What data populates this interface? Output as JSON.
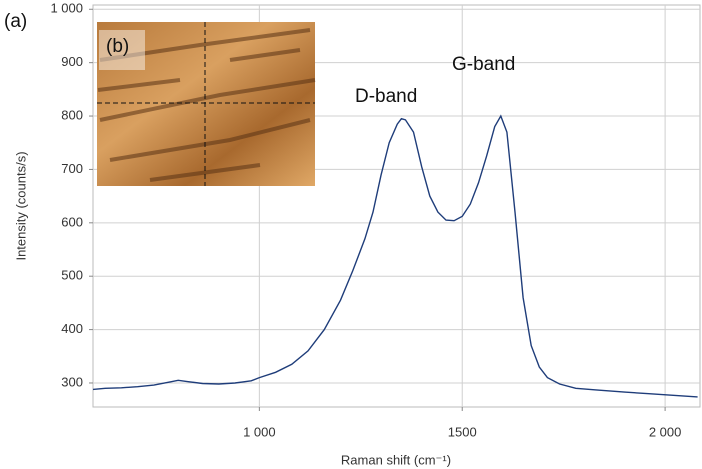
{
  "chart_data": {
    "type": "line",
    "label_a": "(a)",
    "label_b": "(b)",
    "xlabel": "Raman shift (cm⁻¹)",
    "ylabel": "Intensity (counts/s)",
    "annotations": [
      "D-band",
      "G-band"
    ],
    "color": "#1f3d7a",
    "grid": true,
    "xlim": [
      590,
      2086
    ],
    "ylim": [
      255,
      1008
    ],
    "xticks": [
      {
        "value": 1000,
        "label": "1 000"
      },
      1500,
      {
        "value": 2000,
        "label": "2 000"
      }
    ],
    "yticks": [
      300,
      400,
      500,
      600,
      700,
      800,
      900,
      {
        "value": 1000,
        "label": "1 000"
      }
    ],
    "x": [
      590,
      620,
      660,
      700,
      740,
      780,
      800,
      820,
      860,
      900,
      940,
      980,
      1000,
      1040,
      1080,
      1120,
      1160,
      1200,
      1230,
      1260,
      1280,
      1300,
      1320,
      1340,
      1350,
      1360,
      1380,
      1400,
      1420,
      1440,
      1460,
      1480,
      1500,
      1520,
      1540,
      1560,
      1580,
      1595,
      1610,
      1630,
      1650,
      1670,
      1690,
      1710,
      1740,
      1780,
      1830,
      1900,
      1960,
      2020,
      2080
    ],
    "values": [
      288,
      290,
      291,
      293,
      296,
      302,
      305,
      303,
      299,
      298,
      300,
      304,
      310,
      320,
      335,
      360,
      400,
      455,
      510,
      570,
      620,
      690,
      750,
      785,
      795,
      793,
      770,
      705,
      650,
      620,
      605,
      604,
      612,
      635,
      675,
      725,
      780,
      800,
      770,
      620,
      460,
      370,
      330,
      310,
      298,
      290,
      287,
      283,
      280,
      277,
      274
    ]
  }
}
